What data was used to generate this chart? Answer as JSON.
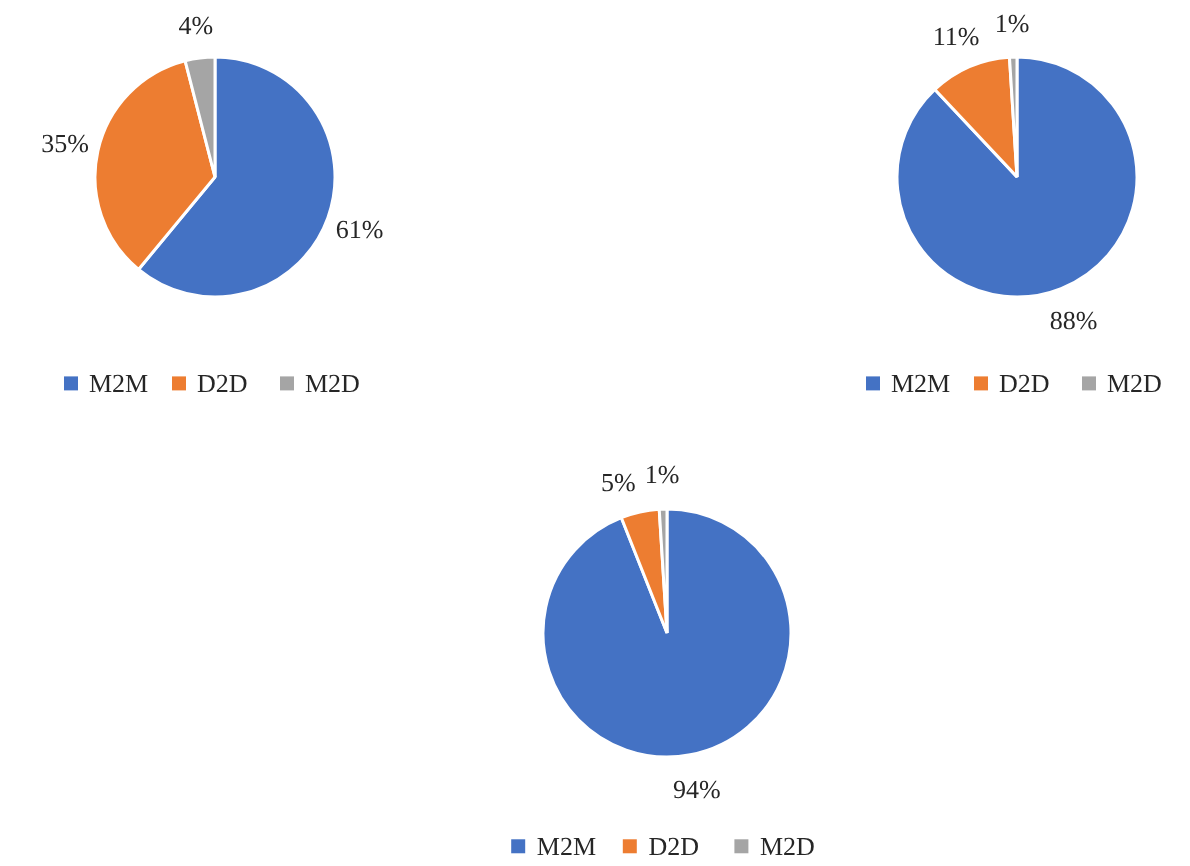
{
  "chart_data": [
    {
      "type": "pie",
      "categories": [
        "M2M",
        "D2D",
        "M2D"
      ],
      "values": [
        61,
        35,
        4
      ],
      "value_labels": [
        "61%",
        "35%",
        "4%"
      ],
      "colors": [
        "#4472c4",
        "#ed7d31",
        "#a5a5a5"
      ],
      "legend": "bottom"
    },
    {
      "type": "pie",
      "categories": [
        "M2M",
        "D2D",
        "M2D"
      ],
      "values": [
        88,
        11,
        1
      ],
      "value_labels": [
        "88%",
        "11%",
        "1%"
      ],
      "colors": [
        "#4472c4",
        "#ed7d31",
        "#a5a5a5"
      ],
      "legend": "bottom"
    },
    {
      "type": "pie",
      "categories": [
        "M2M",
        "D2D",
        "M2D"
      ],
      "values": [
        94,
        5,
        1
      ],
      "value_labels": [
        "94%",
        "5%",
        "1%"
      ],
      "colors": [
        "#4472c4",
        "#ed7d31",
        "#a5a5a5"
      ],
      "legend": "bottom"
    }
  ]
}
